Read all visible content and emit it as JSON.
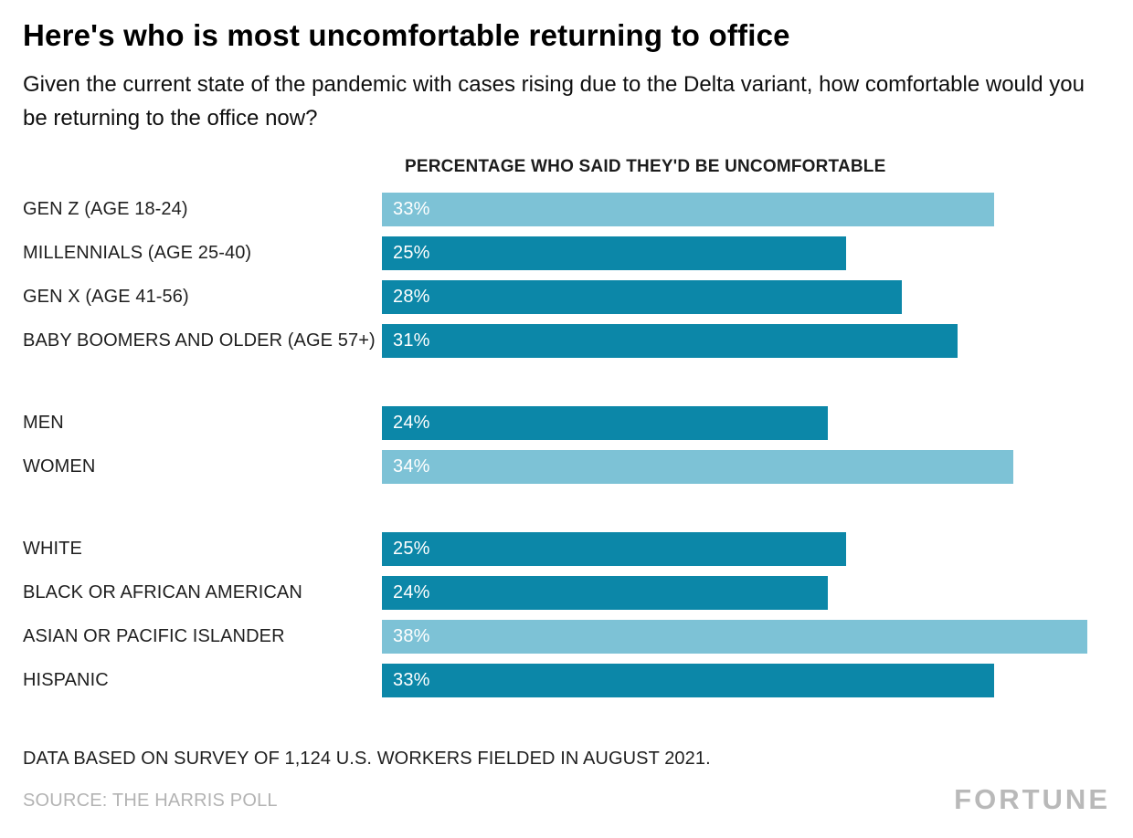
{
  "header": {
    "title": "Here's who is most uncomfortable returning to office",
    "subtitle": "Given the current state of the pandemic with cases rising due to the Delta variant, how comfortable would you be returning to the office now?"
  },
  "chart_data": {
    "type": "bar",
    "orientation": "horizontal",
    "column_header": "PERCENTAGE WHO SAID THEY'D BE UNCOMFORTABLE",
    "xlabel": "",
    "ylabel": "",
    "xlim": [
      0,
      38
    ],
    "grid": false,
    "legend": "none",
    "colors": {
      "bar": "#0c87a8",
      "bar_highlight": "#7dc2d6"
    },
    "groups": [
      {
        "name": "generation",
        "rows": [
          {
            "label": "GEN Z (AGE 18-24)",
            "value": 33,
            "highlight": true
          },
          {
            "label": "MILLENNIALS (AGE 25-40)",
            "value": 25,
            "highlight": false
          },
          {
            "label": "GEN X (AGE 41-56)",
            "value": 28,
            "highlight": false
          },
          {
            "label": "BABY BOOMERS AND OLDER (AGE 57+)",
            "value": 31,
            "highlight": false
          }
        ]
      },
      {
        "name": "gender",
        "rows": [
          {
            "label": "MEN",
            "value": 24,
            "highlight": false
          },
          {
            "label": "WOMEN",
            "value": 34,
            "highlight": true
          }
        ]
      },
      {
        "name": "race-ethnicity",
        "rows": [
          {
            "label": "WHITE",
            "value": 25,
            "highlight": false
          },
          {
            "label": "BLACK OR AFRICAN AMERICAN",
            "value": 24,
            "highlight": false
          },
          {
            "label": "ASIAN OR PACIFIC ISLANDER",
            "value": 38,
            "highlight": true
          },
          {
            "label": "HISPANIC",
            "value": 33,
            "highlight": false
          }
        ]
      }
    ]
  },
  "footer": {
    "note": "DATA BASED ON SURVEY OF 1,124 U.S. WORKERS FIELDED IN AUGUST 2021.",
    "source": "SOURCE: THE HARRIS POLL",
    "brand": "FORTUNE"
  }
}
